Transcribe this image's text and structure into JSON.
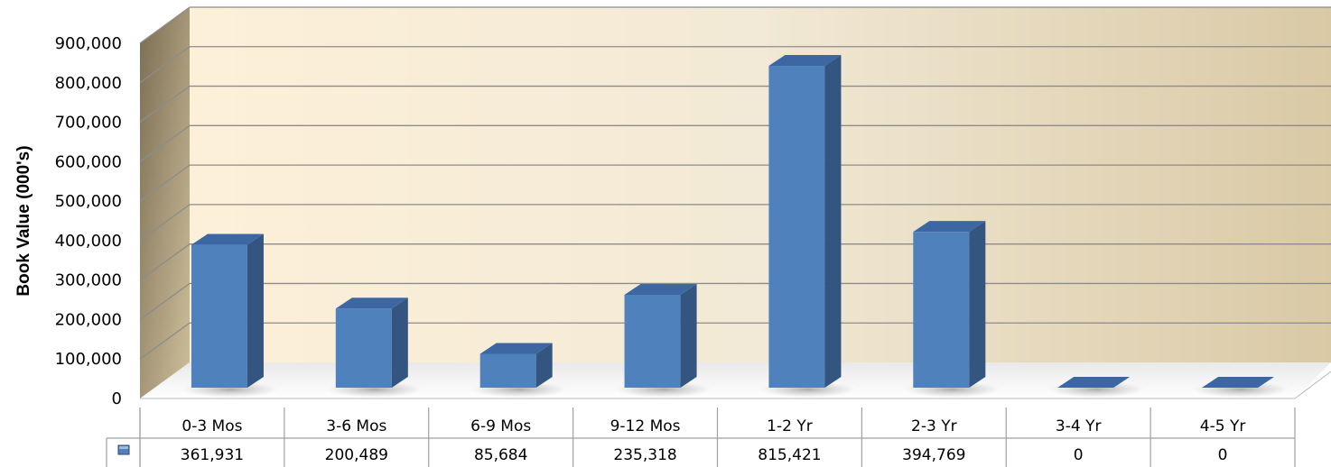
{
  "chart_data": {
    "type": "bar",
    "style": "3d-column-with-data-table",
    "categories": [
      "0-3 Mos",
      "3-6 Mos",
      "6-9 Mos",
      "9-12 Mos",
      "1-2 Yr",
      "2-3 Yr",
      "3-4 Yr",
      "4-5 Yr"
    ],
    "series": [
      {
        "values": [
          361931,
          200489,
          85684,
          235318,
          815421,
          394769,
          0,
          0
        ]
      }
    ],
    "value_labels": [
      "361,931",
      "200,489",
      "85,684",
      "235,318",
      "815,421",
      "394,769",
      "0",
      "0"
    ],
    "ylabel": "Book Value (000's)",
    "ylim": [
      0,
      900000
    ],
    "yticks": [
      0,
      100000,
      200000,
      300000,
      400000,
      500000,
      600000,
      700000,
      800000,
      900000
    ],
    "ytick_labels": [
      "0",
      "100,000",
      "200,000",
      "300,000",
      "400,000",
      "500,000",
      "600,000",
      "700,000",
      "800,000",
      "900,000"
    ],
    "grid": true,
    "legend": "in data table",
    "colors": {
      "bar_front": "#4f81bd",
      "bar_side": "#34557f",
      "bar_top": "#3c67a3",
      "wall_left": "#fdf0d8",
      "wall_right": "#d9c9a5",
      "side_wall_front": "#c9b890",
      "side_wall_back": "#8a7d5f",
      "gridline": "#8c8c8c"
    }
  }
}
